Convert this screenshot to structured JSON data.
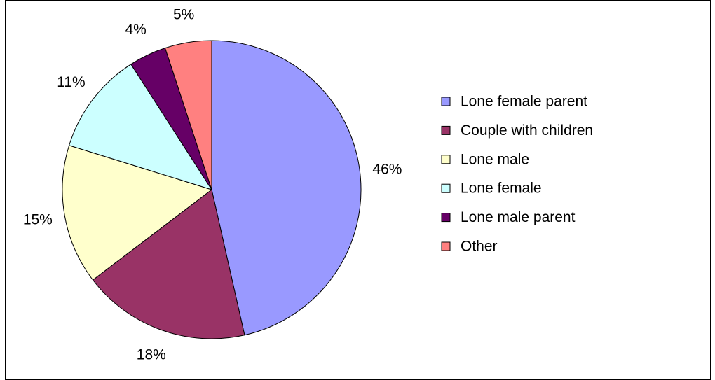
{
  "chart_data": {
    "type": "pie",
    "categories": [
      "Lone female parent",
      "Couple with children",
      "Lone male",
      "Lone female",
      "Lone male parent",
      "Other"
    ],
    "values": [
      46,
      18,
      15,
      11,
      4,
      5
    ],
    "value_labels": [
      "46%",
      "18%",
      "15%",
      "11%",
      "4%",
      "5%"
    ],
    "colors": [
      "#9999ff",
      "#993366",
      "#ffffcc",
      "#ccffff",
      "#660066",
      "#ff8080"
    ],
    "legend": "right"
  }
}
